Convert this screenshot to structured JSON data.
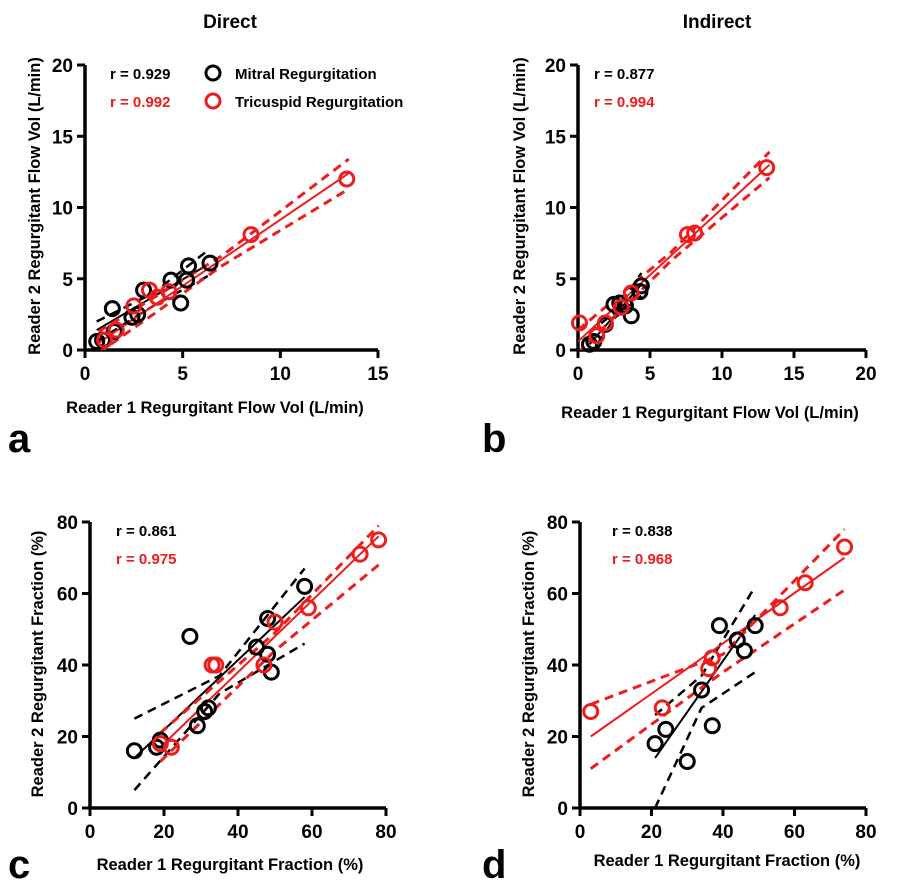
{
  "colors": {
    "mitral": "#000000",
    "tricuspid": "#ee1c1c",
    "axis": "#000000"
  },
  "chart_data": [
    {
      "panel": "a",
      "type": "scatter",
      "title": "Direct",
      "xlabel": "Reader 1 Regurgitant Flow Vol (L/min)",
      "ylabel": "Reader 2 Regurgitant Flow Vol (L/min)",
      "xlim": [
        0,
        15
      ],
      "ylim": [
        0,
        20
      ],
      "xticks": [
        "0",
        "5",
        "10",
        "15"
      ],
      "yticks": [
        "0",
        "5",
        "10",
        "15",
        "20"
      ],
      "legend": {
        "placement": "top",
        "entries": [
          "Mitral Regurgitation",
          "Tricuspid Regurgitation"
        ]
      },
      "series": [
        {
          "name": "Mitral Regurgitation",
          "color": "black",
          "r_text": "r = 0.929",
          "points": [
            [
              0.6,
              0.6
            ],
            [
              0.9,
              0.7
            ],
            [
              1.4,
              2.9
            ],
            [
              1.5,
              1.3
            ],
            [
              2.4,
              2.3
            ],
            [
              2.7,
              2.5
            ],
            [
              3.0,
              4.2
            ],
            [
              4.4,
              4.9
            ],
            [
              4.9,
              3.3
            ],
            [
              5.2,
              4.9
            ],
            [
              5.3,
              5.9
            ],
            [
              6.4,
              6.1
            ]
          ],
          "fit": [
            [
              0.6,
              1.4
            ],
            [
              6.3,
              6.0
            ]
          ],
          "ci_upper": [
            [
              0.6,
              2.0
            ],
            [
              3.5,
              4.0
            ],
            [
              6.3,
              7.0
            ]
          ],
          "ci_lower": [
            [
              0.6,
              0.6
            ],
            [
              3.5,
              3.1
            ],
            [
              6.3,
              5.2
            ]
          ]
        },
        {
          "name": "Tricuspid Regurgitation",
          "color": "red",
          "r_text": "r = 0.992",
          "points": [
            [
              1.0,
              0.7
            ],
            [
              1.6,
              1.4
            ],
            [
              2.5,
              3.1
            ],
            [
              3.3,
              4.2
            ],
            [
              3.7,
              3.7
            ],
            [
              4.3,
              4.1
            ],
            [
              8.5,
              8.1
            ],
            [
              13.4,
              12.0
            ]
          ],
          "fit": [
            [
              0.7,
              0.5
            ],
            [
              13.5,
              12.4
            ]
          ],
          "ci_upper": [
            [
              0.7,
              1.3
            ],
            [
              7.0,
              6.6
            ],
            [
              13.5,
              13.4
            ]
          ],
          "ci_lower": [
            [
              0.7,
              -0.2
            ],
            [
              7.0,
              5.9
            ],
            [
              13.5,
              11.3
            ]
          ]
        }
      ]
    },
    {
      "panel": "b",
      "type": "scatter",
      "title": "Indirect",
      "xlabel": "Reader 1 Regurgitant Flow Vol (L/min)",
      "ylabel": "Reader 2 Regurgitant Flow Vol (L/min)",
      "xlim": [
        0,
        20
      ],
      "ylim": [
        0,
        20
      ],
      "xticks": [
        "0",
        "5",
        "10",
        "15",
        "20"
      ],
      "yticks": [
        "0",
        "5",
        "10",
        "15",
        "20"
      ],
      "series": [
        {
          "name": "Mitral Regurgitation",
          "color": "black",
          "r_text": "r = 0.877",
          "points": [
            [
              0.8,
              0.4
            ],
            [
              1.1,
              0.6
            ],
            [
              1.9,
              1.8
            ],
            [
              2.5,
              3.2
            ],
            [
              2.9,
              3.3
            ],
            [
              3.3,
              3.1
            ],
            [
              3.7,
              2.4
            ],
            [
              4.3,
              4.1
            ],
            [
              4.4,
              4.5
            ]
          ],
          "fit": [
            [
              0.8,
              0.4
            ],
            [
              4.4,
              4.6
            ]
          ],
          "ci_upper": [
            [
              0.8,
              1.2
            ],
            [
              2.6,
              2.7
            ],
            [
              4.4,
              5.4
            ]
          ],
          "ci_lower": [
            [
              0.8,
              -0.4
            ],
            [
              2.6,
              2.3
            ],
            [
              4.4,
              3.8
            ]
          ]
        },
        {
          "name": "Tricuspid Regurgitation",
          "color": "red",
          "r_text": "r = 0.994",
          "points": [
            [
              0.1,
              1.9
            ],
            [
              1.3,
              1.0
            ],
            [
              1.9,
              1.9
            ],
            [
              3.0,
              3.0
            ],
            [
              3.7,
              4.0
            ],
            [
              7.6,
              8.1
            ],
            [
              8.1,
              8.2
            ],
            [
              13.1,
              12.8
            ]
          ],
          "fit": [
            [
              0.0,
              0.6
            ],
            [
              13.3,
              13.0
            ]
          ],
          "ci_upper": [
            [
              0.0,
              1.4
            ],
            [
              6.5,
              6.9
            ],
            [
              13.3,
              13.9
            ]
          ],
          "ci_lower": [
            [
              0.0,
              -0.2
            ],
            [
              6.5,
              6.3
            ],
            [
              13.3,
              12.1
            ]
          ]
        }
      ]
    },
    {
      "panel": "c",
      "type": "scatter",
      "xlabel": "Reader 1 Regurgitant Fraction (%)",
      "ylabel": "Reader 2 Regurgitant Fraction (%)",
      "xlim": [
        0,
        80
      ],
      "ylim": [
        0,
        80
      ],
      "xticks": [
        "0",
        "20",
        "40",
        "60",
        "80"
      ],
      "yticks": [
        "0",
        "20",
        "40",
        "60",
        "80"
      ],
      "series": [
        {
          "name": "Mitral Regurgitation",
          "color": "black",
          "r_text": "r = 0.861",
          "points": [
            [
              12,
              16
            ],
            [
              18,
              17
            ],
            [
              19,
              19
            ],
            [
              27,
              48
            ],
            [
              29,
              23
            ],
            [
              31,
              27
            ],
            [
              32,
              28
            ],
            [
              45,
              45
            ],
            [
              48,
              53
            ],
            [
              48,
              43
            ],
            [
              49,
              38
            ],
            [
              58,
              62
            ]
          ],
          "fit": [
            [
              12,
              14
            ],
            [
              58,
              59
            ]
          ],
          "ci_upper": [
            [
              12,
              25
            ],
            [
              35,
              37
            ],
            [
              58,
              67
            ]
          ],
          "ci_lower": [
            [
              12,
              5
            ],
            [
              35,
              32
            ],
            [
              58,
              46
            ]
          ]
        },
        {
          "name": "Tricuspid Regurgitation",
          "color": "red",
          "r_text": "r = 0.975",
          "points": [
            [
              19,
              18
            ],
            [
              22,
              17
            ],
            [
              33,
              40
            ],
            [
              34,
              40
            ],
            [
              47,
              40
            ],
            [
              50,
              52
            ],
            [
              59,
              56
            ],
            [
              73,
              71
            ],
            [
              78,
              75
            ]
          ],
          "fit": [
            [
              19,
              17
            ],
            [
              78,
              76
            ]
          ],
          "ci_upper": [
            [
              19,
              21
            ],
            [
              50,
              49
            ],
            [
              78,
              79
            ]
          ],
          "ci_lower": [
            [
              19,
              13
            ],
            [
              50,
              44
            ],
            [
              78,
              68
            ]
          ]
        }
      ]
    },
    {
      "panel": "d",
      "type": "scatter",
      "xlabel": "Reader 1 Regurgitant Fraction (%)",
      "ylabel": "Reader 2 Regurgitant Fraction (%)",
      "xlim": [
        0,
        80
      ],
      "ylim": [
        0,
        80
      ],
      "xticks": [
        "0",
        "20",
        "40",
        "60",
        "80"
      ],
      "yticks": [
        "0",
        "20",
        "40",
        "60",
        "80"
      ],
      "series": [
        {
          "name": "Mitral Regurgitation",
          "color": "black",
          "r_text": "r = 0.838",
          "points": [
            [
              21,
              18
            ],
            [
              24,
              22
            ],
            [
              30,
              13
            ],
            [
              34,
              33
            ],
            [
              37,
              23
            ],
            [
              39,
              51
            ],
            [
              44,
              47
            ],
            [
              46,
              44
            ],
            [
              49,
              51
            ]
          ],
          "fit": [
            [
              21,
              14
            ],
            [
              49,
              54
            ]
          ],
          "ci_upper": [
            [
              21,
              26
            ],
            [
              34,
              37
            ],
            [
              49,
              62
            ]
          ],
          "ci_lower": [
            [
              21,
              0
            ],
            [
              34,
              28
            ],
            [
              49,
              38
            ]
          ]
        },
        {
          "name": "Tricuspid Regurgitation",
          "color": "red",
          "r_text": "r = 0.968",
          "points": [
            [
              3,
              27
            ],
            [
              23,
              28
            ],
            [
              36,
              39
            ],
            [
              37,
              42
            ],
            [
              56,
              56
            ],
            [
              63,
              63
            ],
            [
              74,
              73
            ]
          ],
          "fit": [
            [
              3,
              20
            ],
            [
              74,
              70
            ]
          ],
          "ci_upper": [
            [
              3,
              29
            ],
            [
              40,
              43
            ],
            [
              74,
              78
            ]
          ],
          "ci_lower": [
            [
              3,
              11
            ],
            [
              40,
              38
            ],
            [
              74,
              61
            ]
          ]
        }
      ]
    }
  ],
  "panel_letters": [
    "a",
    "b",
    "c",
    "d"
  ]
}
